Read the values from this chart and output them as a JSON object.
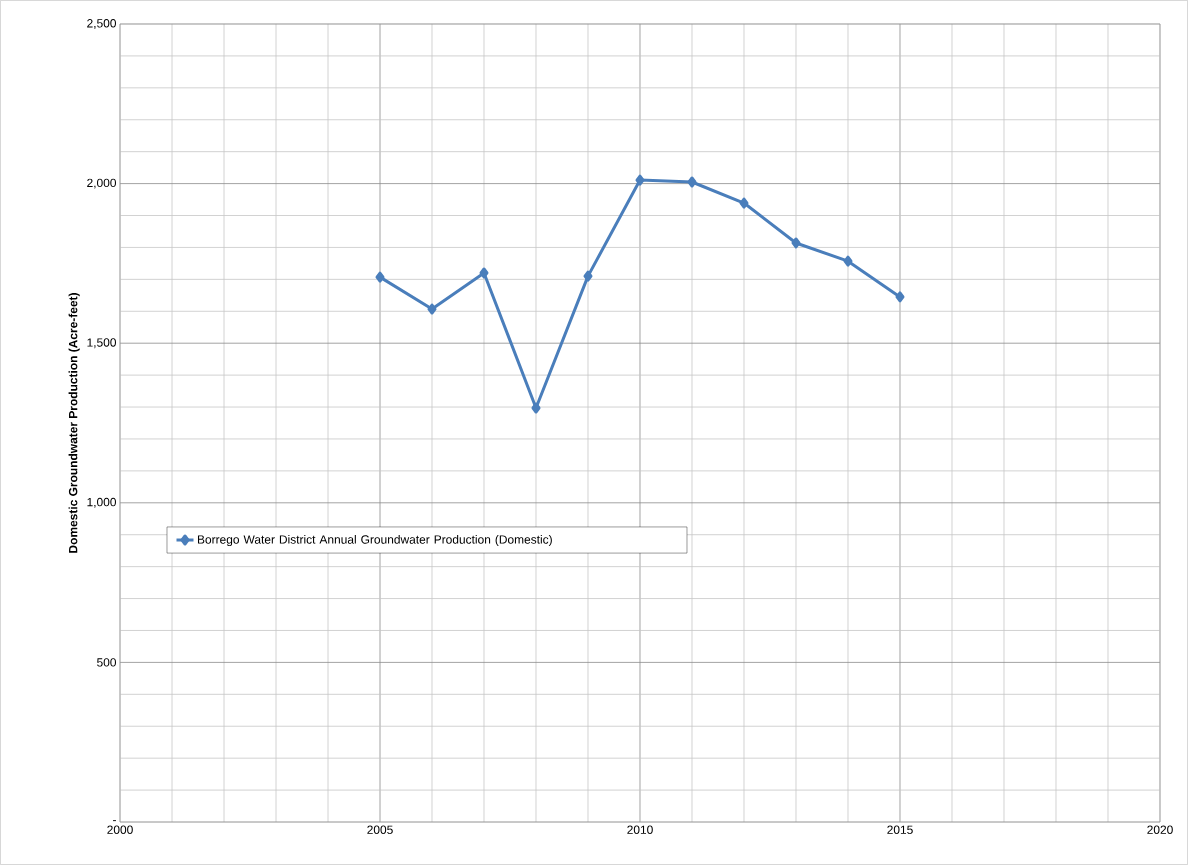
{
  "chart_data": {
    "type": "line",
    "ylabel": "Domestic Groundwater Production (Acre-feet)",
    "x": [
      2005,
      2006,
      2007,
      2008,
      2009,
      2010,
      2011,
      2012,
      2013,
      2014,
      2015
    ],
    "series": [
      {
        "name": "Borrego Water District Annual Groundwater Production (Domestic)",
        "color": "#4a7ebb",
        "values": [
          1707,
          1607,
          1720,
          1297,
          1710,
          2011,
          2005,
          1939,
          1814,
          1757,
          1645
        ]
      }
    ],
    "xlim": [
      2000,
      2020
    ],
    "xticks": [
      2000,
      2005,
      2010,
      2015,
      2020
    ],
    "ylim": [
      0,
      2500
    ],
    "yticks": [
      {
        "value": 0,
        "label": "-"
      },
      500,
      {
        "value": 1000,
        "label": "1,000"
      },
      {
        "value": 1500,
        "label": "1,500"
      },
      {
        "value": 2000,
        "label": "2,000"
      },
      {
        "value": 2500,
        "label": "2,500"
      }
    ],
    "grid": true,
    "legend": "left",
    "marker": "diamond",
    "line_style": "solid"
  }
}
